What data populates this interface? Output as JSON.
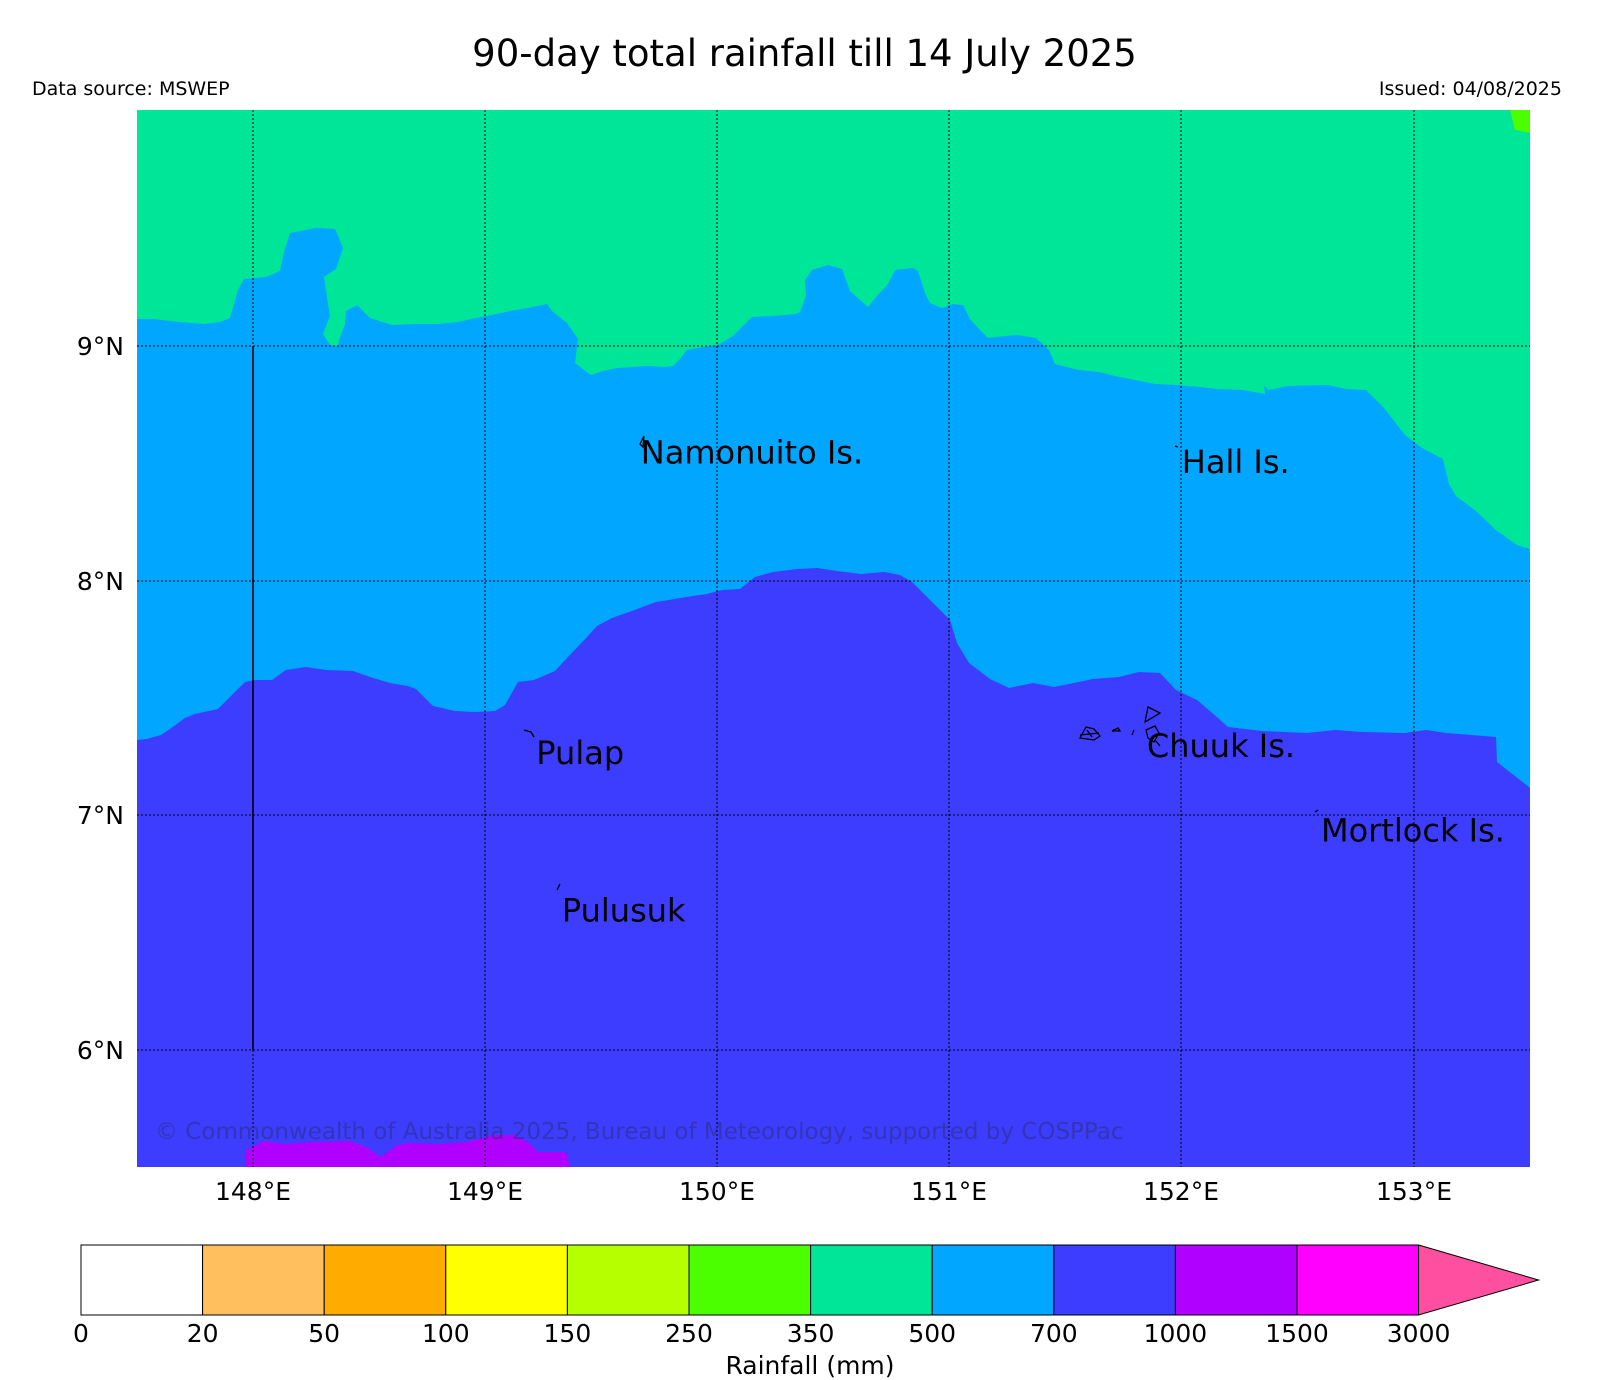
{
  "header": {
    "title": "90-day total rainfall till 14 July 2025",
    "source": "Data source: MSWEP",
    "issued": "Issued: 04/08/2025"
  },
  "map": {
    "lon_range": [
      147.5,
      153.5
    ],
    "lat_range": [
      5.5,
      10.0
    ],
    "lon_ticks": [
      148,
      149,
      150,
      151,
      152,
      153
    ],
    "lon_labels": [
      "148°E",
      "149°E",
      "150°E",
      "151°E",
      "152°E",
      "153°E"
    ],
    "lat_ticks": [
      6,
      7,
      8,
      9
    ],
    "lat_labels": [
      "6°N",
      "7°N",
      "8°N",
      "9°N"
    ],
    "grid": true,
    "rainfall_zones": [
      {
        "class": "350-500",
        "color": "#00e699"
      },
      {
        "class": "500-700",
        "color": "#00a6ff"
      },
      {
        "class": "700-1000",
        "color": "#3d3dff"
      },
      {
        "class": "1000-1500",
        "color": "#b000ff"
      },
      {
        "class": "250-350",
        "color": "#4cff00"
      }
    ],
    "places": [
      {
        "name": "Namonuito Is.",
        "lon": 149.67,
        "lat": 8.58
      },
      {
        "name": "Hall Is.",
        "lon": 152.0,
        "lat": 8.54
      },
      {
        "name": "Pulap",
        "lon": 149.22,
        "lat": 7.3
      },
      {
        "name": "Chuuk Is.",
        "lon": 151.85,
        "lat": 7.33
      },
      {
        "name": "Mortlock Is.",
        "lon": 152.6,
        "lat": 6.97
      },
      {
        "name": "Pulusuk",
        "lon": 149.33,
        "lat": 6.63
      }
    ],
    "copyright": "© Commonwealth of Australia 2025, Bureau of Meteorology, supported by COSPPac"
  },
  "colorbar": {
    "title": "Rainfall (mm)",
    "ticks": [
      "0",
      "20",
      "50",
      "100",
      "150",
      "250",
      "350",
      "500",
      "700",
      "1000",
      "1500",
      "3000"
    ],
    "colors": [
      "#ffffff",
      "#ffbf5f",
      "#ffab00",
      "#ffff00",
      "#b5ff00",
      "#4cff00",
      "#00e699",
      "#00a6ff",
      "#3d3dff",
      "#b000ff",
      "#ff00ff"
    ],
    "extend_color": "#ff4fa0"
  }
}
